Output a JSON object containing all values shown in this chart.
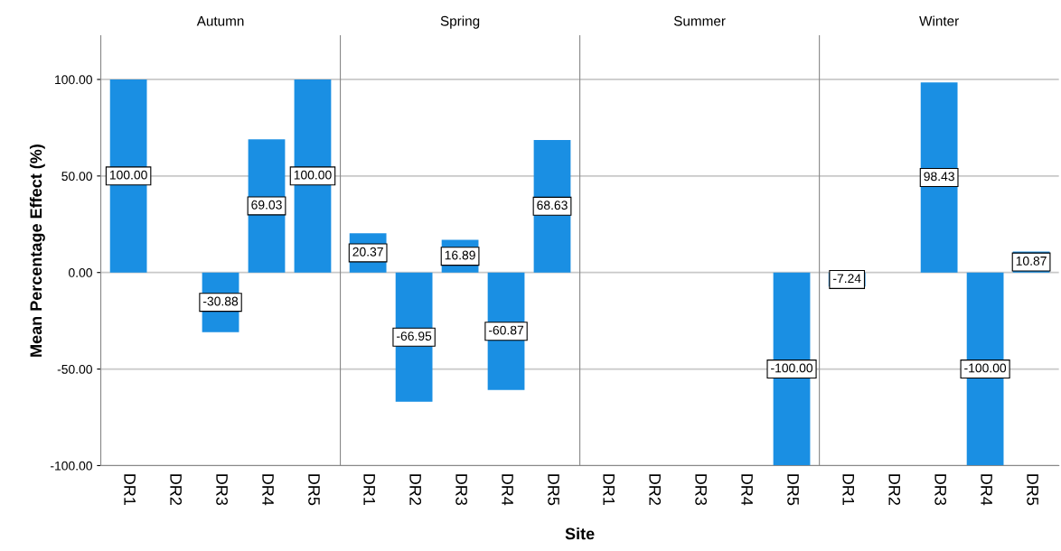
{
  "chart_data": [
    {
      "type": "bar",
      "title": "Autumn",
      "ylabel": "Mean Percentage Effect (%)",
      "categories": [
        "DR1",
        "DR2",
        "DR3",
        "DR4",
        "DR5"
      ],
      "series": [
        {
          "color": "#1a8fe3",
          "values": [
            100.0,
            null,
            -30.88,
            69.03,
            100.0
          ],
          "value_labels": [
            "100.00",
            null,
            "-30.88",
            "69.03",
            "100.00"
          ]
        }
      ],
      "ylim": [
        -100,
        122.6
      ],
      "yticks": [
        {
          "value": -100,
          "label": "-100.00"
        },
        {
          "value": -50,
          "label": "-50.00"
        },
        {
          "value": 0,
          "label": "0.00"
        },
        {
          "value": 50,
          "label": "50.00"
        },
        {
          "value": 100,
          "label": "100.00"
        }
      ],
      "grid": "y"
    },
    {
      "type": "bar",
      "title": "Spring",
      "xlabel": "Site",
      "categories": [
        "DR1",
        "DR2",
        "DR3",
        "DR4",
        "DR5"
      ],
      "series": [
        {
          "color": "#1a8fe3",
          "values": [
            20.37,
            -66.95,
            16.89,
            -60.87,
            68.63
          ],
          "value_labels": [
            "20.37",
            "-66.95",
            "16.89",
            "-60.87",
            "68.63"
          ]
        }
      ],
      "ylim": [
        -100,
        122.6
      ],
      "yticks": [
        -100,
        -50,
        0,
        50,
        100
      ],
      "grid": "y",
      "tick_labels": "x"
    },
    {
      "type": "bar",
      "title": "Summer",
      "categories": [
        "DR1",
        "DR2",
        "DR3",
        "DR4",
        "DR5"
      ],
      "series": [
        {
          "color": "#1a8fe3",
          "values": [
            null,
            null,
            null,
            null,
            -100.0
          ],
          "value_labels": [
            null,
            null,
            null,
            null,
            "-100.00"
          ]
        }
      ],
      "ylim": [
        -100,
        122.6
      ],
      "yticks": [
        -100,
        -50,
        0,
        50,
        100
      ],
      "grid": "y",
      "tick_labels": "x"
    },
    {
      "type": "bar",
      "title": "Winter",
      "categories": [
        "DR1",
        "DR2",
        "DR3",
        "DR4",
        "DR5"
      ],
      "series": [
        {
          "color": "#1a8fe3",
          "values": [
            -7.24,
            null,
            98.43,
            -100.0,
            10.87
          ],
          "value_labels": [
            "-7.24",
            null,
            "98.43",
            "-100.00",
            "10.87"
          ]
        }
      ],
      "ylim": [
        -100,
        122.6
      ],
      "yticks": [
        -100,
        -50,
        0,
        50,
        100
      ],
      "grid": "y",
      "tick_labels": "x"
    }
  ]
}
